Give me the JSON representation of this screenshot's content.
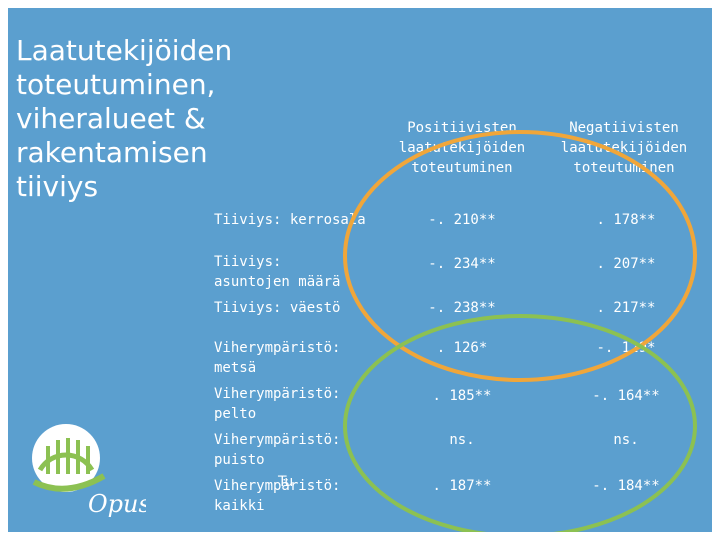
{
  "title": [
    "Laatutekijöiden",
    "toteutuminen,",
    "viheralueet &",
    "rakentamisen",
    "tiiviys"
  ],
  "columns": [
    [
      "Positiivisten",
      "laatutekijöiden",
      "toteutuminen"
    ],
    [
      "Negatiivisten",
      "laatutekijöiden",
      "toteutuminen"
    ]
  ],
  "rows": [
    {
      "label": [
        "Tiiviys: kerrosala"
      ],
      "pos": "-. 210**",
      "neg": ". 178**"
    },
    {
      "label": [
        "Tiiviys:",
        "asuntojen määrä"
      ],
      "pos": "-. 234**",
      "neg": ". 207**"
    },
    {
      "label": [
        "Tiiviys: väestö"
      ],
      "pos": "-. 238**",
      "neg": ". 217**"
    },
    {
      "label": [
        "Viherympäristö:",
        "metsä"
      ],
      "pos": ". 126*",
      "neg": "-. 129*"
    },
    {
      "label": [
        "Viherympäristö:",
        "pelto"
      ],
      "pos": ". 185**",
      "neg": "-. 164**"
    },
    {
      "label": [
        "Viherympäristö:",
        "puisto"
      ],
      "pos": "ns.",
      "neg": "ns."
    },
    {
      "label": [
        "Viherympäristö:",
        "kaikki"
      ],
      "pos": ". 187**",
      "neg": "-. 184**"
    }
  ],
  "overlap_text": "Tu",
  "logo_text": "Opus",
  "colors": {
    "background": "#5b9fcf",
    "text": "#ffffff",
    "orange_ellipse": "#f0a63a",
    "green_ellipse": "#8cc152",
    "logo_green": "#8cc152"
  }
}
